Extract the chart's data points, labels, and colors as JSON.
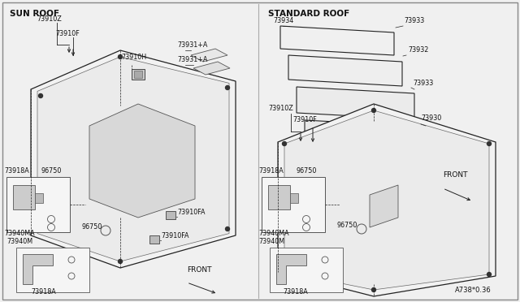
{
  "bg_color": "#f0f0f0",
  "line_color": "#222222",
  "text_color": "#111111",
  "sun_roof_label": "SUN ROOF",
  "standard_roof_label": "STANDARD ROOF",
  "front_label": "FRONT",
  "diagram_code": "A738*0.36"
}
